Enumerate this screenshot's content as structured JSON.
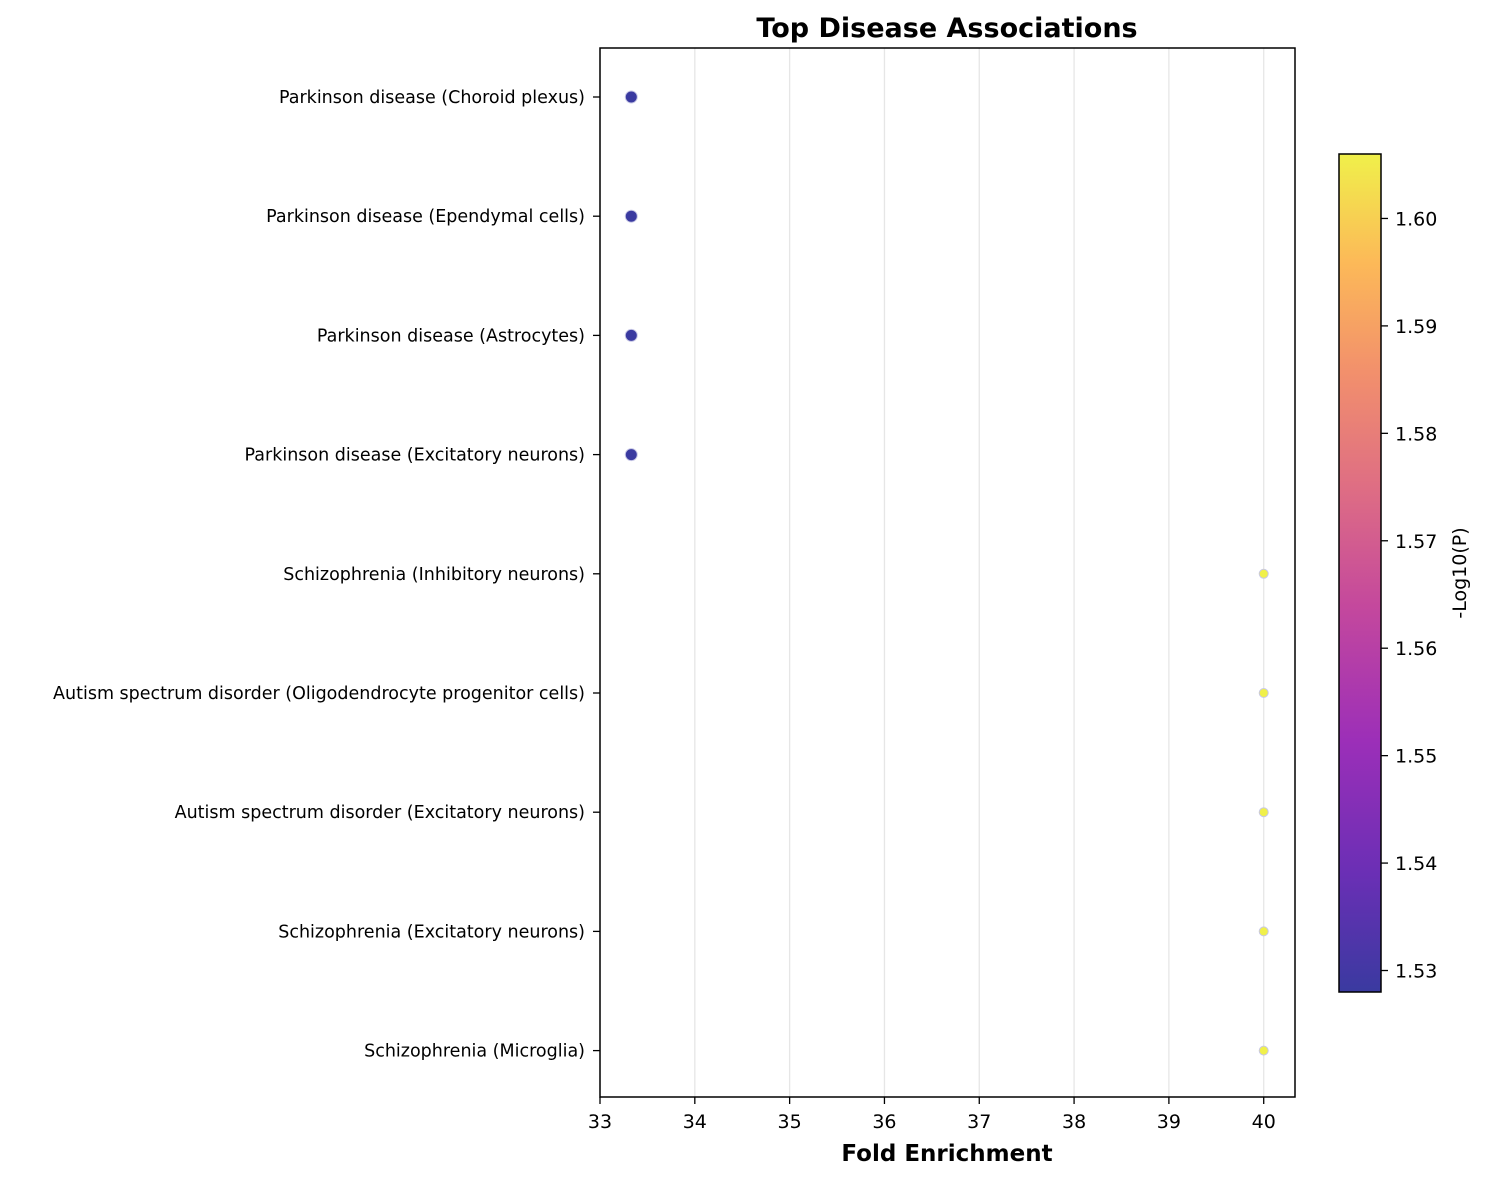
{
  "chart_data": {
    "type": "scatter",
    "title": "Top Disease Associations",
    "xlabel": "Fold Enrichment",
    "ylabel": "",
    "xlim": [
      33,
      40.33
    ],
    "xticks": [
      33,
      34,
      35,
      36,
      37,
      38,
      39,
      40
    ],
    "grid": "vertical",
    "categories": [
      "Parkinson disease (Choroid plexus)",
      "Parkinson disease (Ependymal cells)",
      "Parkinson disease (Astrocytes)",
      "Parkinson disease (Excitatory neurons)",
      "Schizophrenia (Inhibitory neurons)",
      "Autism spectrum disorder (Oligodendrocyte progenitor cells)",
      "Autism spectrum disorder (Excitatory neurons)",
      "Schizophrenia (Excitatory neurons)",
      "Schizophrenia (Microglia)"
    ],
    "points": [
      {
        "x": 33.33,
        "neg_log10_p": 1.528
      },
      {
        "x": 33.33,
        "neg_log10_p": 1.528
      },
      {
        "x": 33.33,
        "neg_log10_p": 1.528
      },
      {
        "x": 33.33,
        "neg_log10_p": 1.528
      },
      {
        "x": 40.0,
        "neg_log10_p": 1.606
      },
      {
        "x": 40.0,
        "neg_log10_p": 1.606
      },
      {
        "x": 40.0,
        "neg_log10_p": 1.606
      },
      {
        "x": 40.0,
        "neg_log10_p": 1.606
      },
      {
        "x": 40.0,
        "neg_log10_p": 1.606
      }
    ],
    "colorbar": {
      "label": "-Log10(P)",
      "colormap": "plasma",
      "range": [
        1.528,
        1.606
      ],
      "ticks": [
        "1.53",
        "1.54",
        "1.55",
        "1.56",
        "1.57",
        "1.58",
        "1.59",
        "1.60"
      ],
      "tick_values": [
        1.53,
        1.54,
        1.55,
        1.56,
        1.57,
        1.58,
        1.59,
        1.6
      ],
      "color_low": "#3a3aa0",
      "color_high": "#f0f04a"
    }
  }
}
